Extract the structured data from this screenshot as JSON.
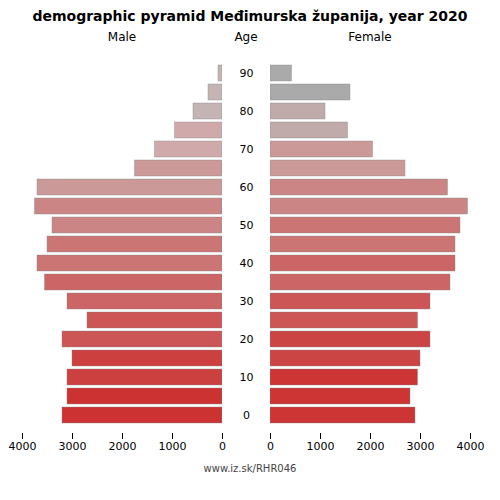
{
  "chart_data": {
    "type": "bar",
    "orientation": "horizontal",
    "title": "demographic pyramid Međimurska županija, year 2020",
    "ylabel": "Age",
    "caption": "www.iz.sk/RHR046",
    "categories": [
      "0",
      null,
      "10",
      null,
      "20",
      null,
      "30",
      null,
      "40",
      null,
      "50",
      null,
      "60",
      null,
      "70",
      null,
      "80",
      null,
      "90"
    ],
    "series": [
      {
        "name": "Male",
        "values": [
          3200,
          3100,
          3100,
          3000,
          3200,
          2700,
          3100,
          3550,
          3700,
          3500,
          3400,
          3750,
          3700,
          1750,
          1350,
          950,
          580,
          280,
          80
        ],
        "colors": [
          "#cd3232",
          "#cd3232",
          "#cc4040",
          "#cc4040",
          "#cc5555",
          "#cc5555",
          "#cc6565",
          "#cc6565",
          "#cc7575",
          "#cc7575",
          "#cc8585",
          "#cc8585",
          "#cc9999",
          "#cc9999",
          "#d0aaaa",
          "#d0aaaa",
          "#c4b4b4",
          "#c4b4b4",
          "#c4b4b4"
        ]
      },
      {
        "name": "Female",
        "values": [
          2900,
          2800,
          2950,
          3000,
          3200,
          2950,
          3200,
          3600,
          3700,
          3700,
          3800,
          3950,
          3550,
          2700,
          2050,
          1550,
          1100,
          1600,
          430
        ],
        "colors": [
          "#cd3535",
          "#cd3535",
          "#cd3535",
          "#cc4545",
          "#cc4545",
          "#cc5555",
          "#cc5555",
          "#cc6565",
          "#cc6565",
          "#cc7575",
          "#cc7575",
          "#cc8585",
          "#cc8585",
          "#cc9999",
          "#cc9999",
          "#c0aaaa",
          "#c0aaaa",
          "#aaaaaa",
          "#aaaaaa"
        ]
      }
    ],
    "xlim": [
      0,
      4000
    ],
    "xticks": [
      0,
      1000,
      2000,
      3000,
      4000
    ],
    "grid": false
  }
}
